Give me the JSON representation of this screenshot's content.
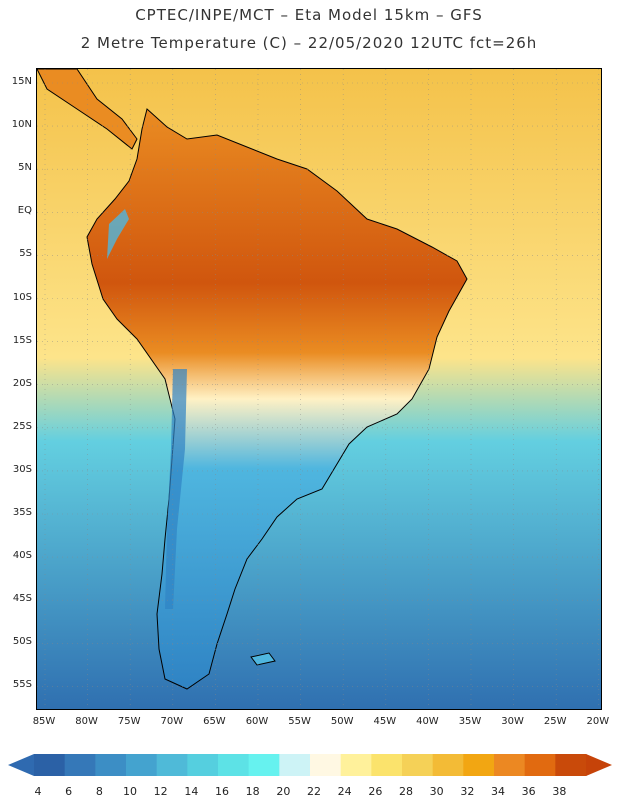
{
  "header": {
    "line1": "CPTEC/INPE/MCT –  Eta Model 15km – GFS",
    "line2": "2 Metre Temperature (C) – 22/05/2020 12UTC fct=26h"
  },
  "map": {
    "region": "South America",
    "lat_labels": [
      "15N",
      "10N",
      "5N",
      "EQ",
      "5S",
      "10S",
      "15S",
      "20S",
      "25S",
      "30S",
      "35S",
      "40S",
      "45S",
      "50S",
      "55S"
    ],
    "lon_labels": [
      "85W",
      "80W",
      "75W",
      "70W",
      "65W",
      "60W",
      "55W",
      "50W",
      "45W",
      "40W",
      "35W",
      "30W",
      "25W",
      "20W"
    ],
    "colors": {
      "ocean_warm": "#f4c24a",
      "ocean_mild": "#fde48a",
      "ocean_cool": "#63cfe0",
      "ocean_cold": "#2f6fb0",
      "land_hot": "#d0560e",
      "land_warm": "#ea8c22",
      "land_mild": "#fff1c4",
      "land_cool": "#4fb6df",
      "land_cold": "#2f83c4"
    }
  },
  "colorbar": {
    "labels": [
      "4",
      "6",
      "8",
      "10",
      "12",
      "14",
      "16",
      "18",
      "20",
      "22",
      "24",
      "26",
      "28",
      "30",
      "32",
      "34",
      "36",
      "38"
    ],
    "colors": [
      "#2b61a6",
      "#3578b8",
      "#3c8ec5",
      "#44a3cf",
      "#4fbad8",
      "#55cfdf",
      "#5de2e6",
      "#66f2ef",
      "#cdf3f6",
      "#fff8e3",
      "#fff19b",
      "#fbe36c",
      "#f5d157",
      "#f3bb36",
      "#f2a612",
      "#ec8822",
      "#e16a10",
      "#c94a0a"
    ],
    "low_end_color": "#2f6ab0",
    "high_end_color": "#c64309"
  }
}
